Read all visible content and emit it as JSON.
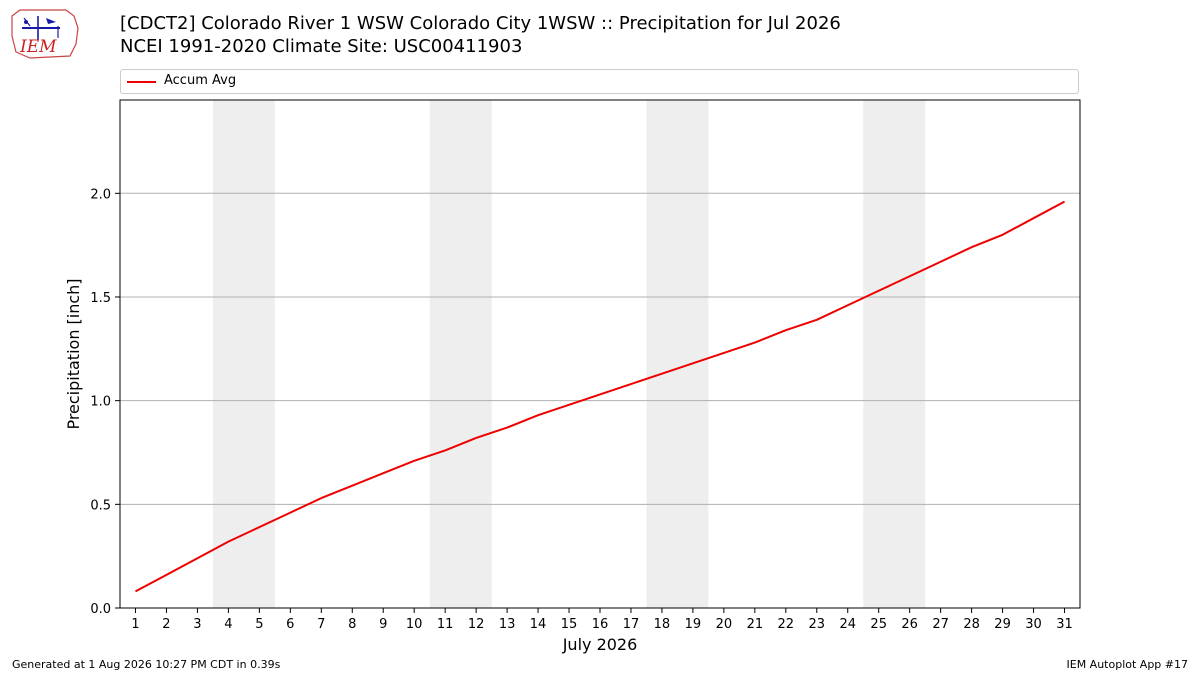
{
  "header": {
    "title_line1": "[CDCT2] Colorado River 1 WSW Colorado City 1WSW :: Precipitation for Jul 2026",
    "title_line2": "NCEI 1991-2020 Climate Site: USC00411903"
  },
  "logo": {
    "text": "IEM"
  },
  "footer": {
    "generated": "Generated at 1 Aug 2026 10:27 PM CDT in 0.39s",
    "app": "IEM Autoplot App #17"
  },
  "colors": {
    "line": "#ee0000",
    "weekend_band": "#eeeeee",
    "grid": "#b0b0b0"
  },
  "chart_data": {
    "type": "line",
    "xlabel": "July 2026",
    "ylabel": "Precipitation [inch]",
    "x": [
      1,
      2,
      3,
      4,
      5,
      6,
      7,
      8,
      9,
      10,
      11,
      12,
      13,
      14,
      15,
      16,
      17,
      18,
      19,
      20,
      21,
      22,
      23,
      24,
      25,
      26,
      27,
      28,
      29,
      30,
      31
    ],
    "series": [
      {
        "name": "Accum Avg",
        "values": [
          0.08,
          0.16,
          0.24,
          0.32,
          0.39,
          0.46,
          0.53,
          0.59,
          0.65,
          0.71,
          0.76,
          0.82,
          0.87,
          0.93,
          0.98,
          1.03,
          1.08,
          1.13,
          1.18,
          1.23,
          1.28,
          1.34,
          1.39,
          1.46,
          1.53,
          1.6,
          1.67,
          1.74,
          1.8,
          1.88,
          1.96
        ]
      }
    ],
    "weekend_bands": [
      [
        4,
        5
      ],
      [
        11,
        12
      ],
      [
        18,
        19
      ],
      [
        25,
        26
      ]
    ],
    "xlim": [
      0.5,
      31.5
    ],
    "ylim": [
      0,
      2.45
    ],
    "yticks": [
      "0.0",
      "0.5",
      "1.0",
      "1.5",
      "2.0"
    ],
    "grid": "horizontal",
    "legend_position": "top"
  }
}
